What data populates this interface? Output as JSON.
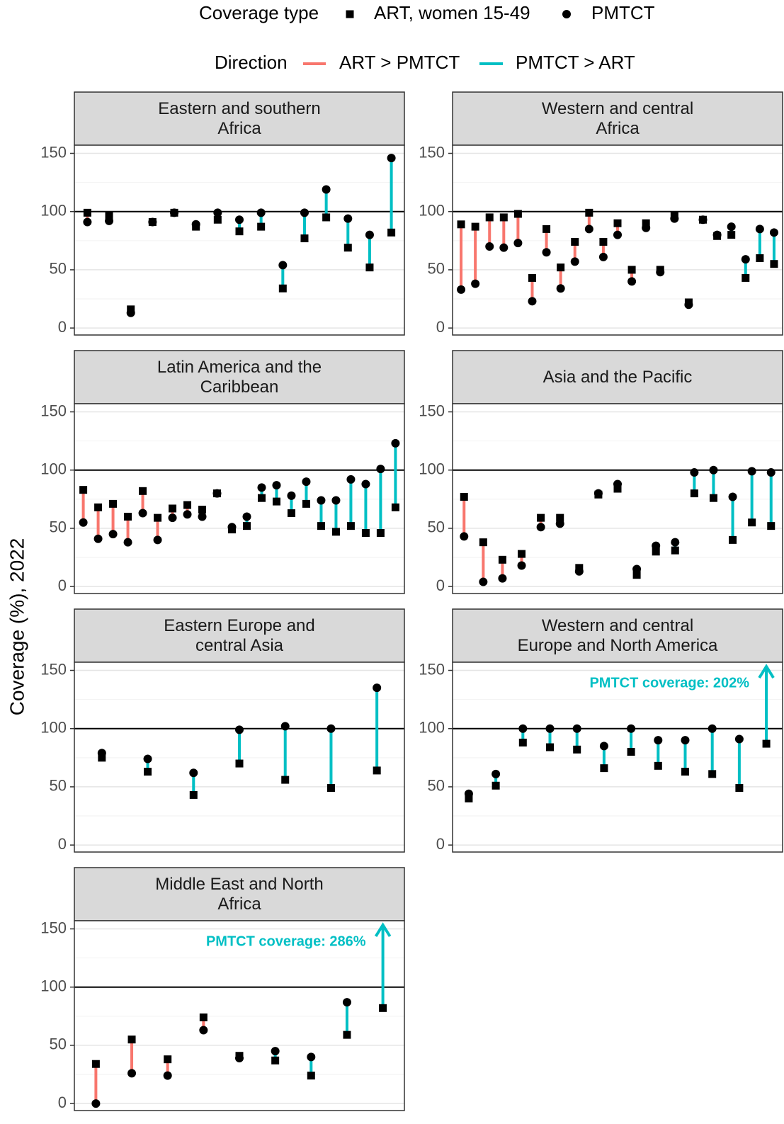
{
  "legend": {
    "shape_title": "Coverage type",
    "shape_entries": [
      {
        "name": "ART, women 15-49",
        "shape": "square"
      },
      {
        "name": "PMTCT",
        "shape": "circle"
      }
    ],
    "color_title": "Direction",
    "color_entries": [
      {
        "name": "ART > PMTCT",
        "color": "#F8766D"
      },
      {
        "name": "PMTCT > ART",
        "color": "#00BFC4"
      }
    ]
  },
  "y_axis_label": "Coverage (%), 2022",
  "chart_data": [
    {
      "type": "dumbbell",
      "title": "Eastern and southern\nAfrica",
      "ylim": [
        -6,
        157
      ],
      "yticks": [
        0,
        50,
        100,
        150
      ],
      "minor_yticks": [
        25,
        75,
        125
      ],
      "hline": 100,
      "grid": true,
      "series": [
        {
          "values": [
            99,
            97,
            16,
            91,
            99,
            87,
            93,
            83,
            87,
            34,
            77,
            95,
            69,
            52,
            82
          ]
        },
        {
          "values": [
            91,
            92,
            13,
            91,
            99,
            89,
            99,
            93,
            99,
            54,
            99,
            119,
            94,
            80,
            146
          ]
        }
      ]
    },
    {
      "type": "dumbbell",
      "title": "Western and central\nAfrica",
      "ylim": [
        -6,
        157
      ],
      "yticks": [
        0,
        50,
        100,
        150
      ],
      "minor_yticks": [
        25,
        75,
        125
      ],
      "hline": 100,
      "grid": true,
      "series": [
        {
          "values": [
            89,
            87,
            95,
            95,
            98,
            43,
            85,
            52,
            74,
            99,
            74,
            90,
            50,
            90,
            50,
            97,
            22,
            93,
            79,
            80,
            43,
            60,
            55
          ]
        },
        {
          "values": [
            33,
            38,
            70,
            69,
            73,
            23,
            65,
            34,
            57,
            85,
            61,
            80,
            40,
            86,
            48,
            94,
            20,
            93,
            80,
            87,
            59,
            85,
            82
          ]
        }
      ]
    },
    {
      "type": "dumbbell",
      "title": "Latin America and the\nCaribbean",
      "ylim": [
        -6,
        157
      ],
      "yticks": [
        0,
        50,
        100,
        150
      ],
      "minor_yticks": [
        25,
        75,
        125
      ],
      "hline": 100,
      "grid": true,
      "series": [
        {
          "values": [
            83,
            68,
            71,
            60,
            82,
            59,
            67,
            70,
            66,
            80,
            49,
            52,
            76,
            73,
            63,
            71,
            52,
            47,
            52,
            46,
            46,
            68
          ]
        },
        {
          "values": [
            55,
            41,
            45,
            38,
            63,
            40,
            59,
            62,
            60,
            80,
            51,
            60,
            85,
            87,
            78,
            90,
            74,
            74,
            92,
            88,
            101,
            123
          ]
        }
      ]
    },
    {
      "type": "dumbbell",
      "title": "Asia and the Pacific",
      "ylim": [
        -6,
        157
      ],
      "yticks": [
        0,
        50,
        100,
        150
      ],
      "minor_yticks": [
        25,
        75,
        125
      ],
      "hline": 100,
      "grid": true,
      "series": [
        {
          "values": [
            77,
            38,
            23,
            28,
            59,
            59,
            16,
            79,
            84,
            10,
            30,
            31,
            80,
            76,
            40,
            55,
            52
          ]
        },
        {
          "values": [
            43,
            4,
            7,
            18,
            51,
            54,
            13,
            80,
            88,
            15,
            35,
            38,
            98,
            100,
            77,
            99,
            98
          ]
        }
      ]
    },
    {
      "type": "dumbbell",
      "title": "Eastern Europe and\ncentral Asia",
      "ylim": [
        -6,
        157
      ],
      "yticks": [
        0,
        50,
        100,
        150
      ],
      "minor_yticks": [
        25,
        75,
        125
      ],
      "hline": 100,
      "grid": true,
      "series": [
        {
          "values": [
            75,
            63,
            43,
            70,
            56,
            49,
            64
          ]
        },
        {
          "values": [
            79,
            74,
            62,
            99,
            102,
            100,
            135
          ]
        }
      ]
    },
    {
      "type": "dumbbell",
      "title": "Western and central\nEurope and North America",
      "ylim": [
        -6,
        157
      ],
      "yticks": [
        0,
        50,
        100,
        150
      ],
      "minor_yticks": [
        25,
        75,
        125
      ],
      "hline": 100,
      "grid": true,
      "annotation": "PMTCT coverage: 202%",
      "series": [
        {
          "values": [
            40,
            51,
            88,
            84,
            82,
            66,
            80,
            68,
            63,
            61,
            49,
            87
          ]
        },
        {
          "values": [
            44,
            61,
            100,
            100,
            100,
            85,
            100,
            90,
            90,
            100,
            91,
            202
          ]
        }
      ]
    },
    {
      "type": "dumbbell",
      "title": "Middle East and North\nAfrica",
      "ylim": [
        -6,
        157
      ],
      "yticks": [
        0,
        50,
        100,
        150
      ],
      "minor_yticks": [
        25,
        75,
        125
      ],
      "hline": 100,
      "grid": true,
      "annotation": "PMTCT coverage: 286%",
      "series": [
        {
          "values": [
            34,
            55,
            38,
            74,
            41,
            37,
            24,
            59,
            82
          ]
        },
        {
          "values": [
            0,
            26,
            24,
            63,
            39,
            45,
            40,
            87,
            286
          ]
        }
      ]
    }
  ]
}
